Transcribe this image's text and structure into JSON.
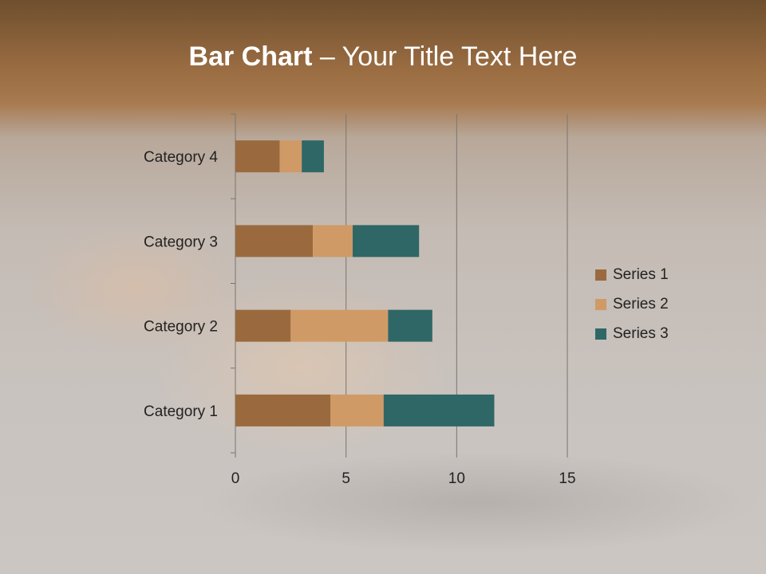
{
  "title": {
    "bold": "Bar Chart",
    "rest": " – Your Title Text Here"
  },
  "chart_data": {
    "type": "bar",
    "orientation": "horizontal",
    "stacked": true,
    "categories": [
      "Category 1",
      "Category 2",
      "Category 3",
      "Category 4"
    ],
    "series": [
      {
        "name": "Series 1",
        "values": [
          4.3,
          2.5,
          3.5,
          2
        ],
        "color": "#9a6a3e"
      },
      {
        "name": "Series 2",
        "values": [
          2.4,
          4.4,
          1.8,
          1
        ],
        "color": "#d09a66"
      },
      {
        "name": "Series 3",
        "values": [
          5,
          2,
          3,
          1
        ],
        "color": "#2f6767"
      }
    ],
    "xlim": [
      0,
      15
    ],
    "xticks": [
      "0",
      "5",
      "10",
      "15"
    ],
    "grid": true,
    "legend": "right"
  }
}
